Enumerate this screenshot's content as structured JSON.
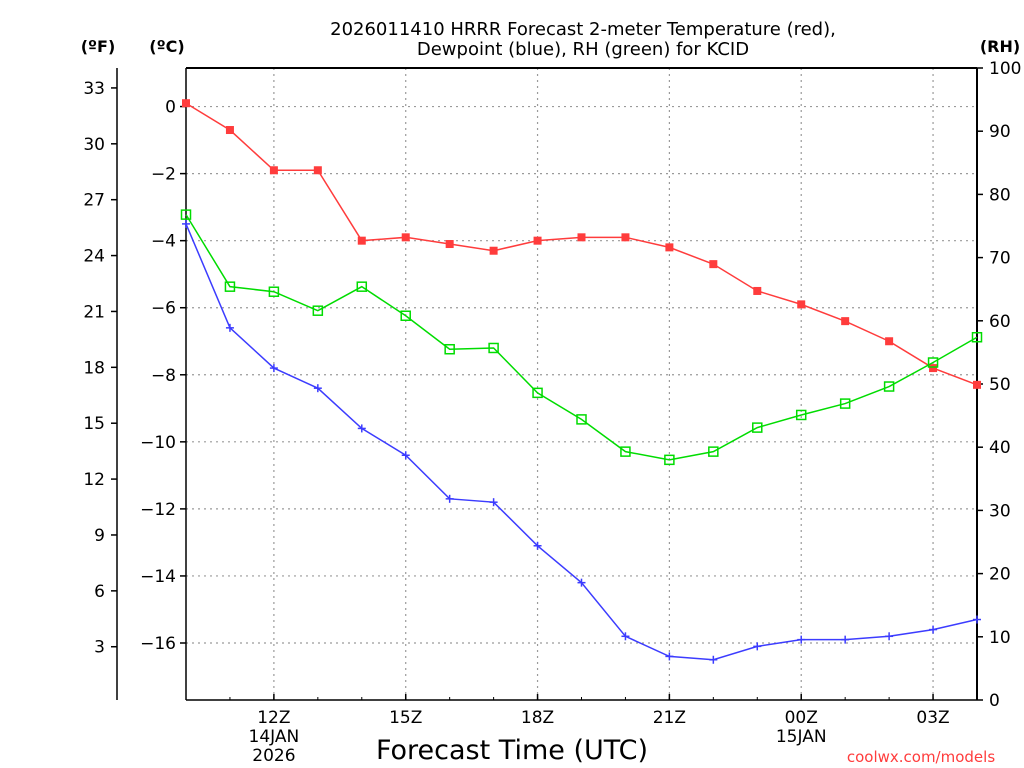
{
  "chart_data": {
    "type": "line",
    "title_line1": "2026011410 HRRR Forecast 2-meter Temperature (red),",
    "title_line2": "Dewpoint (blue), RH (green) for KCID",
    "xlabel": "Forecast Time (UTC)",
    "left_unit_f": "(ºF)",
    "left_unit_c": "(ºC)",
    "right_unit": "(RH)",
    "credit": "coolwx.com/models",
    "x_hours": [
      10,
      11,
      12,
      13,
      14,
      15,
      16,
      17,
      18,
      19,
      20,
      21,
      22,
      23,
      24,
      25,
      26,
      27,
      28
    ],
    "xlim": [
      10,
      28
    ],
    "x_ticks": [
      {
        "x": 12,
        "label": "12Z",
        "sub1": "14JAN",
        "sub2": "2026"
      },
      {
        "x": 15,
        "label": "15Z",
        "sub1": "",
        "sub2": ""
      },
      {
        "x": 18,
        "label": "18Z",
        "sub1": "",
        "sub2": ""
      },
      {
        "x": 21,
        "label": "21Z",
        "sub1": "",
        "sub2": ""
      },
      {
        "x": 24,
        "label": "00Z",
        "sub1": "15JAN",
        "sub2": ""
      },
      {
        "x": 27,
        "label": "03Z",
        "sub1": "",
        "sub2": ""
      }
    ],
    "ylim_c": [
      -17.7,
      1.15
    ],
    "ylim_rh": [
      0,
      100
    ],
    "c_ticks": [
      0,
      -2,
      -4,
      -6,
      -8,
      -10,
      -12,
      -14,
      -16
    ],
    "f_ticks": [
      33,
      30,
      27,
      24,
      21,
      18,
      15,
      12,
      9,
      6,
      3
    ],
    "rh_ticks": [
      100,
      90,
      80,
      70,
      60,
      50,
      40,
      30,
      20,
      10,
      0
    ],
    "series": [
      {
        "name": "2-meter Temperature (°C)",
        "color": "#ff3c3c",
        "marker": "filled-square",
        "values": [
          0.1,
          -0.7,
          -1.9,
          -1.9,
          -4.0,
          -3.9,
          -4.1,
          -4.3,
          -4.0,
          -3.9,
          -3.9,
          -4.2,
          -4.7,
          -5.5,
          -5.9,
          -6.4,
          -7.0,
          -7.8,
          -8.3
        ]
      },
      {
        "name": "Dewpoint (°C)",
        "color": "#3c3cff",
        "marker": "plus",
        "values": [
          -3.5,
          -6.6,
          -7.8,
          -8.4,
          -9.6,
          -10.4,
          -11.7,
          -11.8,
          -13.1,
          -14.2,
          -15.8,
          -16.4,
          -16.5,
          -16.1,
          -15.9,
          -15.9,
          -15.8,
          -15.6,
          -15.3
        ]
      },
      {
        "name": "RH (%)",
        "color": "#00dc00",
        "marker": "open-square",
        "values": [
          76.8,
          65.4,
          64.6,
          61.6,
          65.4,
          60.8,
          55.5,
          55.7,
          48.6,
          44.4,
          39.3,
          38.0,
          39.3,
          43.1,
          45.1,
          46.9,
          49.6,
          53.4,
          57.4
        ]
      }
    ]
  }
}
